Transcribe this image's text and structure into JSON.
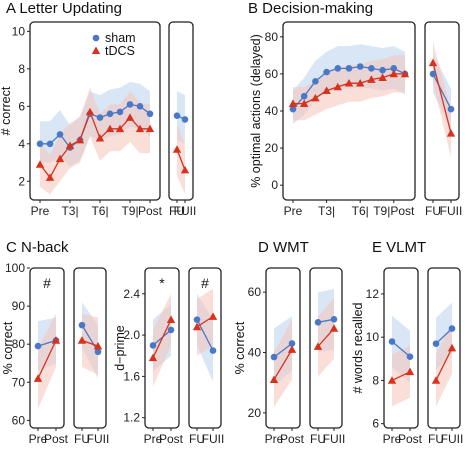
{
  "colors": {
    "sham": "#4a78c8",
    "sham_band": "#b9d1ee",
    "tdcs": "#d8321f",
    "tdcs_band": "#f5c4ba",
    "frame": "#222222"
  },
  "chart_data": [
    {
      "panel": "A",
      "title": "A Letter Updating",
      "type": "line",
      "ylabel": "# correct",
      "ylim": [
        1,
        10.5
      ],
      "yticks": [
        "2",
        "4",
        "6",
        "8",
        "10"
      ],
      "x_labels": [
        "Pre",
        "T3|",
        "T6|",
        "T9|",
        "Post"
      ],
      "x_label_positions": [
        1,
        4,
        7,
        10,
        12
      ],
      "followup_labels": [
        "FU",
        "FUII"
      ],
      "legend": [
        "sham",
        "tDCS"
      ],
      "main": {
        "x": [
          1,
          2,
          3,
          4,
          5,
          6,
          7,
          8,
          9,
          10,
          11,
          12
        ],
        "sham": [
          4.0,
          4.0,
          4.5,
          3.8,
          4.2,
          5.6,
          5.4,
          5.6,
          5.7,
          6.1,
          6.0,
          5.6
        ],
        "sham_band": [
          [
            3.0,
            5.2
          ],
          [
            3.0,
            5.2
          ],
          [
            3.3,
            5.8
          ],
          [
            2.8,
            5.0
          ],
          [
            3.1,
            5.5
          ],
          [
            4.4,
            6.8
          ],
          [
            4.2,
            6.6
          ],
          [
            4.4,
            6.9
          ],
          [
            4.5,
            7.0
          ],
          [
            4.9,
            7.3
          ],
          [
            4.8,
            7.2
          ],
          [
            4.4,
            6.8
          ]
        ],
        "tdcs": [
          2.9,
          2.2,
          3.2,
          3.9,
          4.2,
          5.7,
          4.3,
          4.8,
          4.8,
          5.4,
          4.8,
          4.8
        ],
        "tdcs_band": [
          [
            1.7,
            4.1
          ],
          [
            1.3,
            3.4
          ],
          [
            2.0,
            4.5
          ],
          [
            2.7,
            5.1
          ],
          [
            3.0,
            5.4
          ],
          [
            4.4,
            7.0
          ],
          [
            3.1,
            5.6
          ],
          [
            3.6,
            6.1
          ],
          [
            3.6,
            6.1
          ],
          [
            4.1,
            6.8
          ],
          [
            3.5,
            6.2
          ],
          [
            3.5,
            6.1
          ]
        ]
      },
      "followup": {
        "sham": [
          5.5,
          5.3
        ],
        "sham_band": [
          [
            4.2,
            6.8
          ],
          [
            4.0,
            6.6
          ]
        ],
        "tdcs": [
          3.7,
          2.6
        ],
        "tdcs_band": [
          [
            2.3,
            5.1
          ],
          [
            1.3,
            3.9
          ]
        ]
      }
    },
    {
      "panel": "B",
      "title": "B Decision-making",
      "type": "line",
      "ylabel": "% optimal actions (delayed)",
      "ylim": [
        -8,
        88
      ],
      "yticks": [
        "0",
        "20",
        "40",
        "60",
        "80"
      ],
      "x_labels": [
        "Pre",
        "T3|",
        "T6|",
        "T9|Post"
      ],
      "x_label_positions": [
        1,
        4,
        7,
        10
      ],
      "followup_labels": [
        "FU",
        "FUII"
      ],
      "main": {
        "x": [
          1,
          2,
          3,
          4,
          5,
          6,
          7,
          8,
          9,
          10,
          11
        ],
        "sham": [
          41,
          48,
          56,
          61,
          63,
          63,
          64,
          63,
          62,
          63,
          60
        ],
        "sham_band": [
          [
            33,
            51
          ],
          [
            38,
            58
          ],
          [
            46,
            67
          ],
          [
            50,
            72
          ],
          [
            52,
            75
          ],
          [
            52,
            75
          ],
          [
            53,
            76
          ],
          [
            52,
            75
          ],
          [
            51,
            74
          ],
          [
            52,
            75
          ],
          [
            49,
            72
          ]
        ],
        "tdcs": [
          44,
          44,
          47,
          51,
          53,
          55,
          55,
          57,
          58,
          60,
          60
        ],
        "tdcs_band": [
          [
            35,
            53
          ],
          [
            35,
            53
          ],
          [
            38,
            56
          ],
          [
            41,
            61
          ],
          [
            43,
            63
          ],
          [
            45,
            65
          ],
          [
            45,
            65
          ],
          [
            47,
            67
          ],
          [
            48,
            68
          ],
          [
            50,
            70
          ],
          [
            50,
            70
          ]
        ]
      },
      "followup": {
        "sham": [
          60,
          41
        ],
        "sham_band": [
          [
            50,
            71
          ],
          [
            30,
            52
          ]
        ],
        "tdcs": [
          66,
          28
        ],
        "tdcs_band": [
          [
            55,
            77
          ],
          [
            15,
            41
          ]
        ]
      }
    },
    {
      "panel": "C",
      "title": "C N-back",
      "type": "line",
      "ylabel": "% correct",
      "ylim": [
        58,
        100
      ],
      "yticks": [
        "60",
        "70",
        "80",
        "90",
        "100"
      ],
      "groups": [
        {
          "labels": [
            "Pre",
            "Post"
          ],
          "annotation": "#",
          "sham": [
            79.5,
            81
          ],
          "sham_band": [
            [
              73,
              86
            ],
            [
              75,
              87
            ]
          ],
          "tdcs": [
            71,
            81
          ],
          "tdcs_band": [
            [
              63,
              79
            ],
            [
              74,
              88
            ]
          ]
        },
        {
          "labels": [
            "FU",
            "FUII"
          ],
          "annotation": "",
          "sham": [
            85,
            78
          ],
          "sham_band": [
            [
              79,
              91
            ],
            [
              71,
              85
            ]
          ],
          "tdcs": [
            81,
            79.5
          ],
          "tdcs_band": [
            [
              74,
              88
            ],
            [
              72,
              87
            ]
          ]
        }
      ]
    },
    {
      "panel": "C2",
      "title": "",
      "type": "line",
      "ylabel": "d−prime",
      "ylim": [
        1.1,
        2.65
      ],
      "yticks": [
        "1.2",
        "1.6",
        "2.0",
        "2.4"
      ],
      "groups": [
        {
          "labels": [
            "Pre",
            "Post"
          ],
          "annotation": "*",
          "sham": [
            1.9,
            2.05
          ],
          "sham_band": [
            [
              1.65,
              2.15
            ],
            [
              1.8,
              2.3
            ]
          ],
          "tdcs": [
            1.78,
            2.15
          ],
          "tdcs_band": [
            [
              1.5,
              2.05
            ],
            [
              1.9,
              2.4
            ]
          ]
        },
        {
          "labels": [
            "FU",
            "FUII"
          ],
          "annotation": "#",
          "sham": [
            2.15,
            1.85
          ],
          "sham_band": [
            [
              1.9,
              2.4
            ],
            [
              1.55,
              2.15
            ]
          ],
          "tdcs": [
            2.08,
            2.18
          ],
          "tdcs_band": [
            [
              1.8,
              2.35
            ],
            [
              1.9,
              2.45
            ]
          ]
        }
      ]
    },
    {
      "panel": "D",
      "title": "D WMT",
      "type": "line",
      "ylabel": "% correct",
      "ylim": [
        15,
        68
      ],
      "yticks": [
        "20",
        "40",
        "60"
      ],
      "groups": [
        {
          "labels": [
            "Pre",
            "Post"
          ],
          "annotation": "",
          "sham": [
            38.5,
            43
          ],
          "sham_band": [
            [
              29,
              48
            ],
            [
              34,
              52
            ]
          ],
          "tdcs": [
            31,
            41
          ],
          "tdcs_band": [
            [
              22,
              40
            ],
            [
              31,
              51
            ]
          ]
        },
        {
          "labels": [
            "FU",
            "FUII"
          ],
          "annotation": "",
          "sham": [
            50,
            51
          ],
          "sham_band": [
            [
              40,
              60
            ],
            [
              41,
              61
            ]
          ],
          "tdcs": [
            42,
            48
          ],
          "tdcs_band": [
            [
              32,
              52
            ],
            [
              38,
              58
            ]
          ]
        }
      ]
    },
    {
      "panel": "E",
      "title": "E VLMT",
      "type": "line",
      "ylabel": "# words recalled",
      "ylim": [
        5.8,
        13.2
      ],
      "yticks": [
        "6",
        "8",
        "10",
        "12"
      ],
      "groups": [
        {
          "labels": [
            "Pre",
            "Post"
          ],
          "annotation": "",
          "sham": [
            9.8,
            9.1
          ],
          "sham_band": [
            [
              8.6,
              11.0
            ],
            [
              7.9,
              10.3
            ]
          ],
          "tdcs": [
            8.0,
            8.4
          ],
          "tdcs_band": [
            [
              6.8,
              9.2
            ],
            [
              7.2,
              9.6
            ]
          ]
        },
        {
          "labels": [
            "FU",
            "FUII"
          ],
          "annotation": "",
          "sham": [
            9.7,
            10.4
          ],
          "sham_band": [
            [
              8.5,
              10.9
            ],
            [
              9.2,
              11.6
            ]
          ],
          "tdcs": [
            8.0,
            9.5
          ],
          "tdcs_band": [
            [
              6.8,
              9.2
            ],
            [
              8.3,
              10.7
            ]
          ]
        }
      ]
    }
  ]
}
